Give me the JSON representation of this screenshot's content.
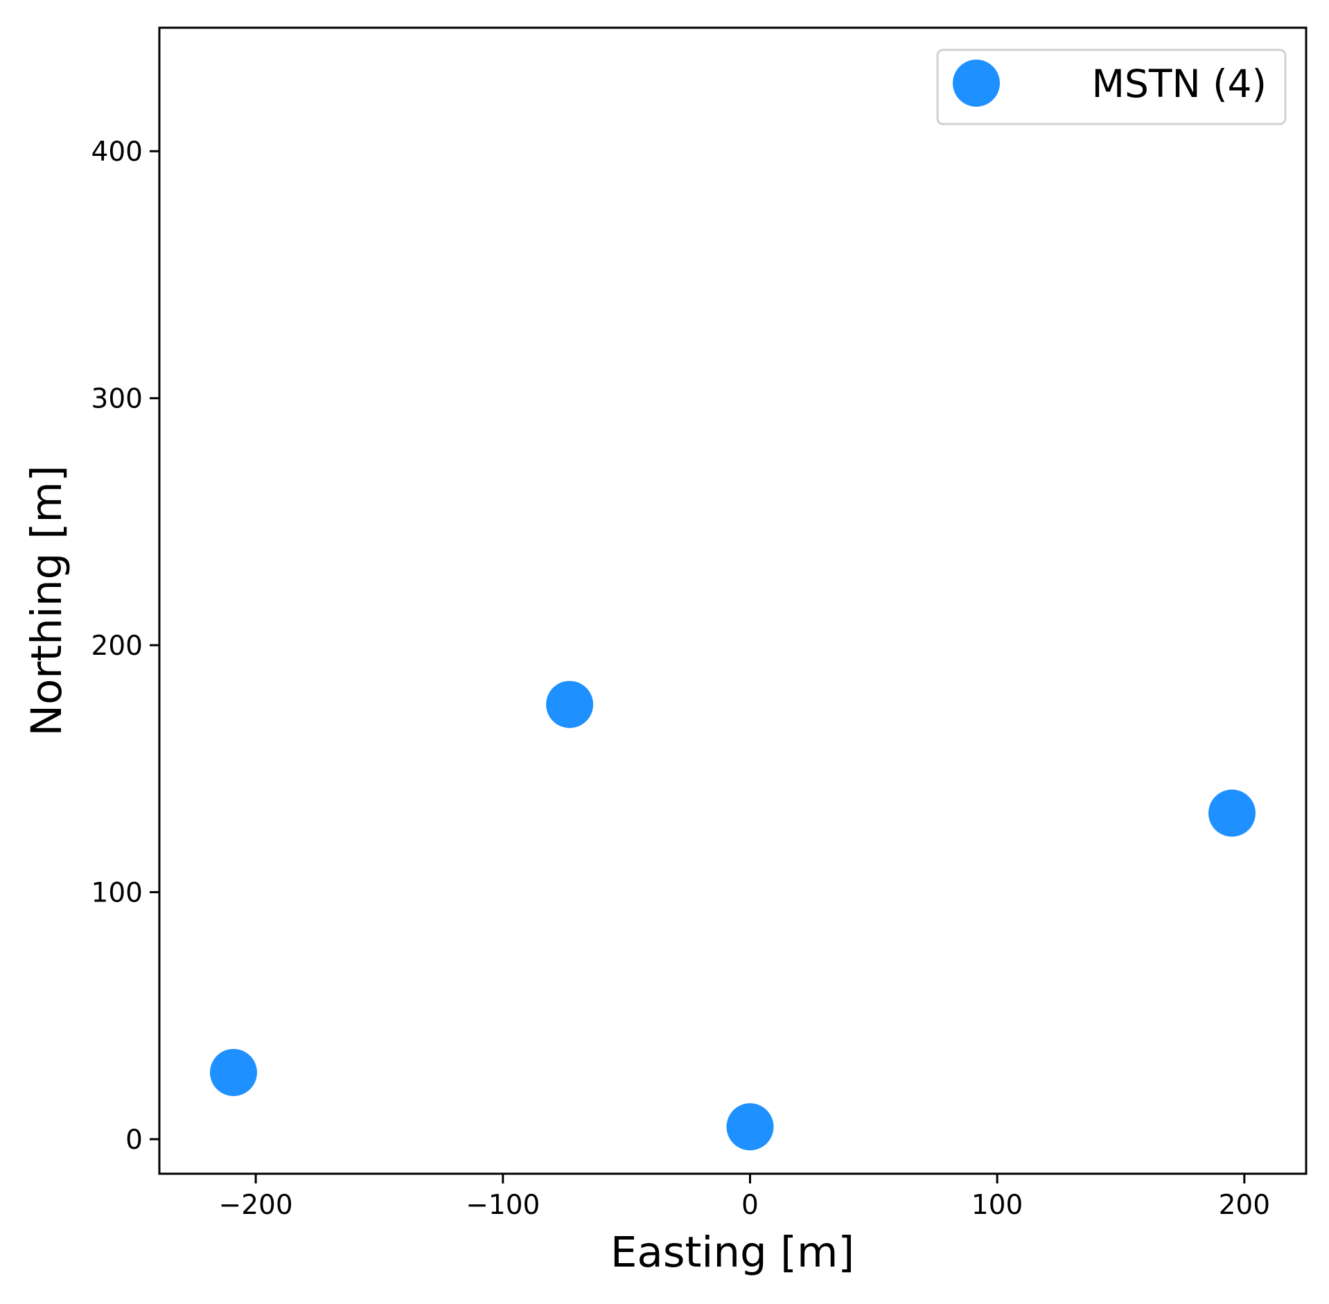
{
  "chart_data": {
    "type": "scatter",
    "title": "",
    "xlabel": "Easting [m]",
    "ylabel": "Northing [m]",
    "xlim": [
      -239,
      225
    ],
    "ylim": [
      -14,
      450
    ],
    "xticks": [
      -200,
      -100,
      0,
      100,
      200
    ],
    "xtick_labels": [
      "−200",
      "−100",
      "0",
      "100",
      "200"
    ],
    "yticks": [
      0,
      100,
      200,
      300,
      400
    ],
    "ytick_labels": [
      "0",
      "100",
      "200",
      "300",
      "400"
    ],
    "grid": false,
    "legend_position": "top-right",
    "series": [
      {
        "name": "MSTN (4)",
        "color": "#1e90ff",
        "marker": "circle",
        "points": [
          {
            "x": -209,
            "y": 27
          },
          {
            "x": -73,
            "y": 176
          },
          {
            "x": 0,
            "y": 5
          },
          {
            "x": 195,
            "y": 132
          }
        ]
      }
    ]
  }
}
